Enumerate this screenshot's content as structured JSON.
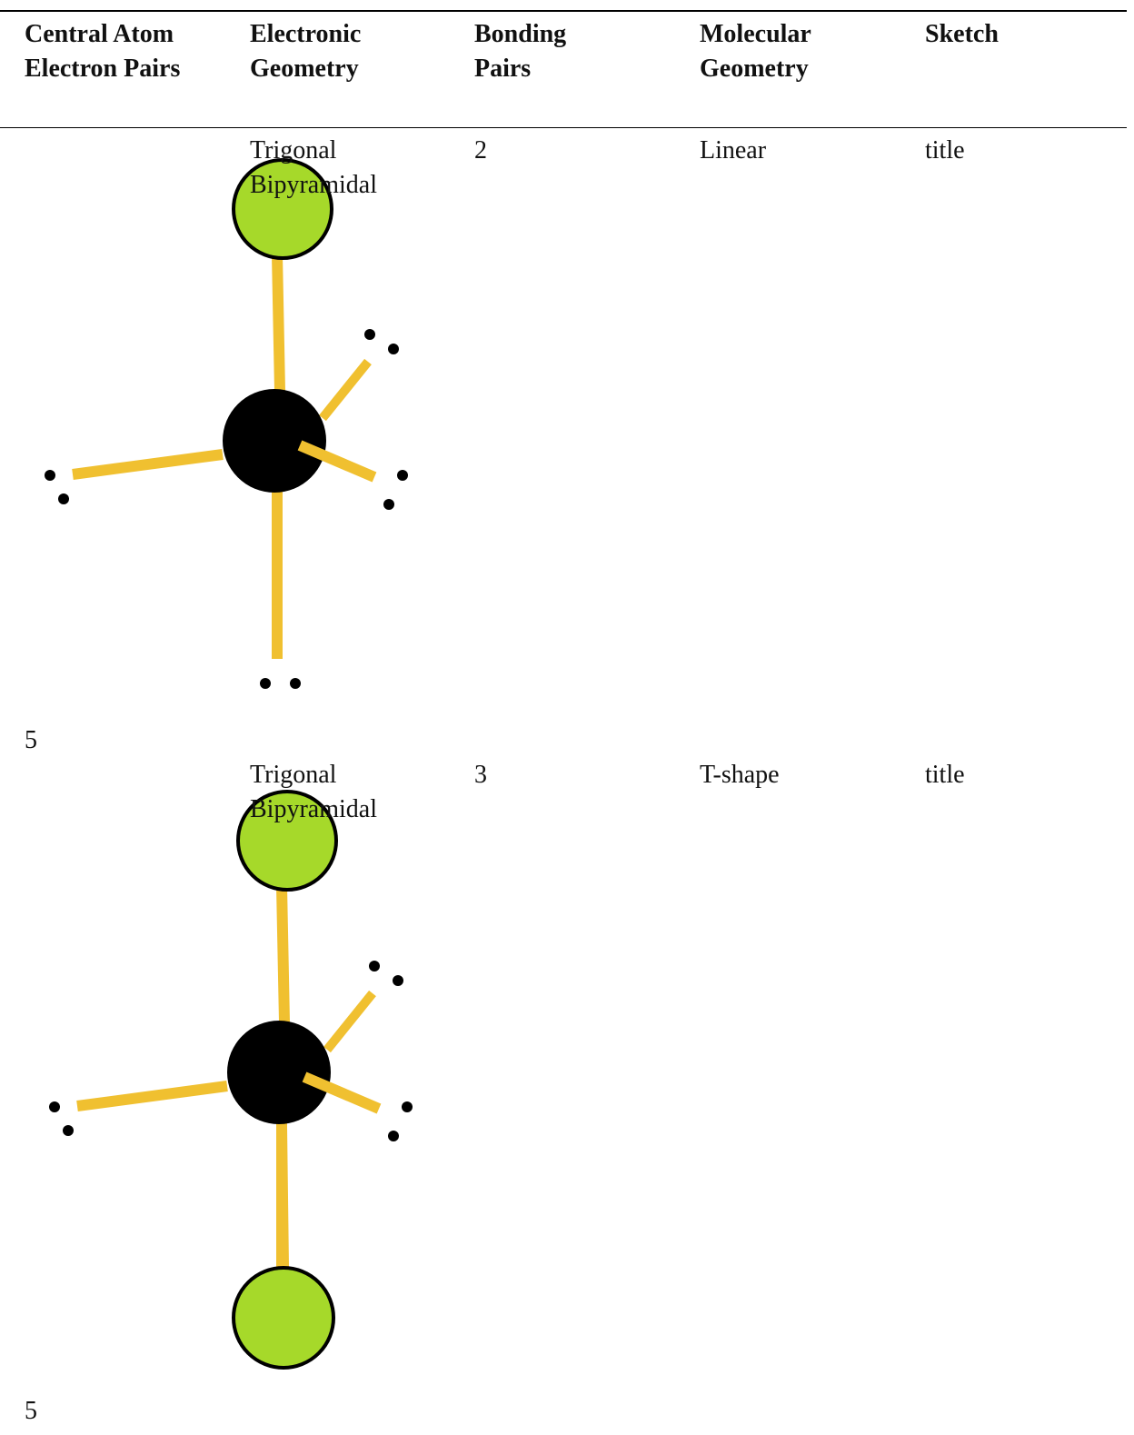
{
  "table": {
    "header": [
      "Central Atom Electron Pairs",
      "Electronic Geometry",
      "Bonding Pairs",
      "Molecular Geometry",
      "Sketch"
    ],
    "rows": [
      [
        "5",
        "Trigonal Bipyramidal",
        "2",
        "Linear",
        "title"
      ],
      [
        "5",
        "Trigonal Bipyramidal",
        "3",
        "T-shape",
        "title"
      ]
    ]
  }
}
